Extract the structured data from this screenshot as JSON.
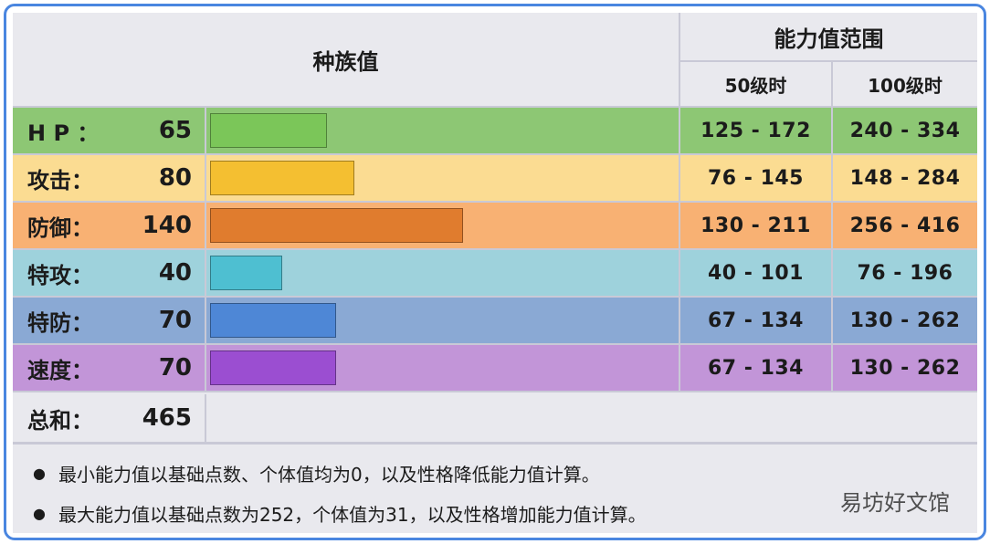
{
  "header": {
    "base_stats_title": "种族值",
    "range_title": "能力值范围",
    "level50": "50级时",
    "level100": "100级时"
  },
  "rows": [
    {
      "label": "H P ：",
      "base": "65",
      "range50": "125 - 172",
      "range100": "240 - 334",
      "stat": 65,
      "row_color": "#8dc774",
      "bar_color": "#7bc659"
    },
    {
      "label": "攻击：",
      "base": "80",
      "range50": "76 - 145",
      "range100": "148 - 284",
      "stat": 80,
      "row_color": "#fbdc92",
      "bar_color": "#f4bf31"
    },
    {
      "label": "防御：",
      "base": "140",
      "range50": "130 - 211",
      "range100": "256 - 416",
      "stat": 140,
      "row_color": "#f8b173",
      "bar_color": "#e07c2e"
    },
    {
      "label": "特攻：",
      "base": "40",
      "range50": "40 - 101",
      "range100": "76 - 196",
      "stat": 40,
      "row_color": "#9ed2dc",
      "bar_color": "#4ebfd1"
    },
    {
      "label": "特防：",
      "base": "70",
      "range50": "67 - 134",
      "range100": "130 - 262",
      "stat": 70,
      "row_color": "#8aa9d4",
      "bar_color": "#4e87d6"
    },
    {
      "label": "速度：",
      "base": "70",
      "range50": "67 - 134",
      "range100": "130 - 262",
      "stat": 70,
      "row_color": "#c295d8",
      "bar_color": "#9b4ed1"
    }
  ],
  "total": {
    "label": "总和：",
    "value": "465"
  },
  "notes": [
    "最小能力值以基础点数、个体值均为0，以及性格降低能力值计算。",
    "最大能力值以基础点数为252，个体值为31，以及性格增加能力值计算。"
  ],
  "watermark": "易坊好文馆"
}
